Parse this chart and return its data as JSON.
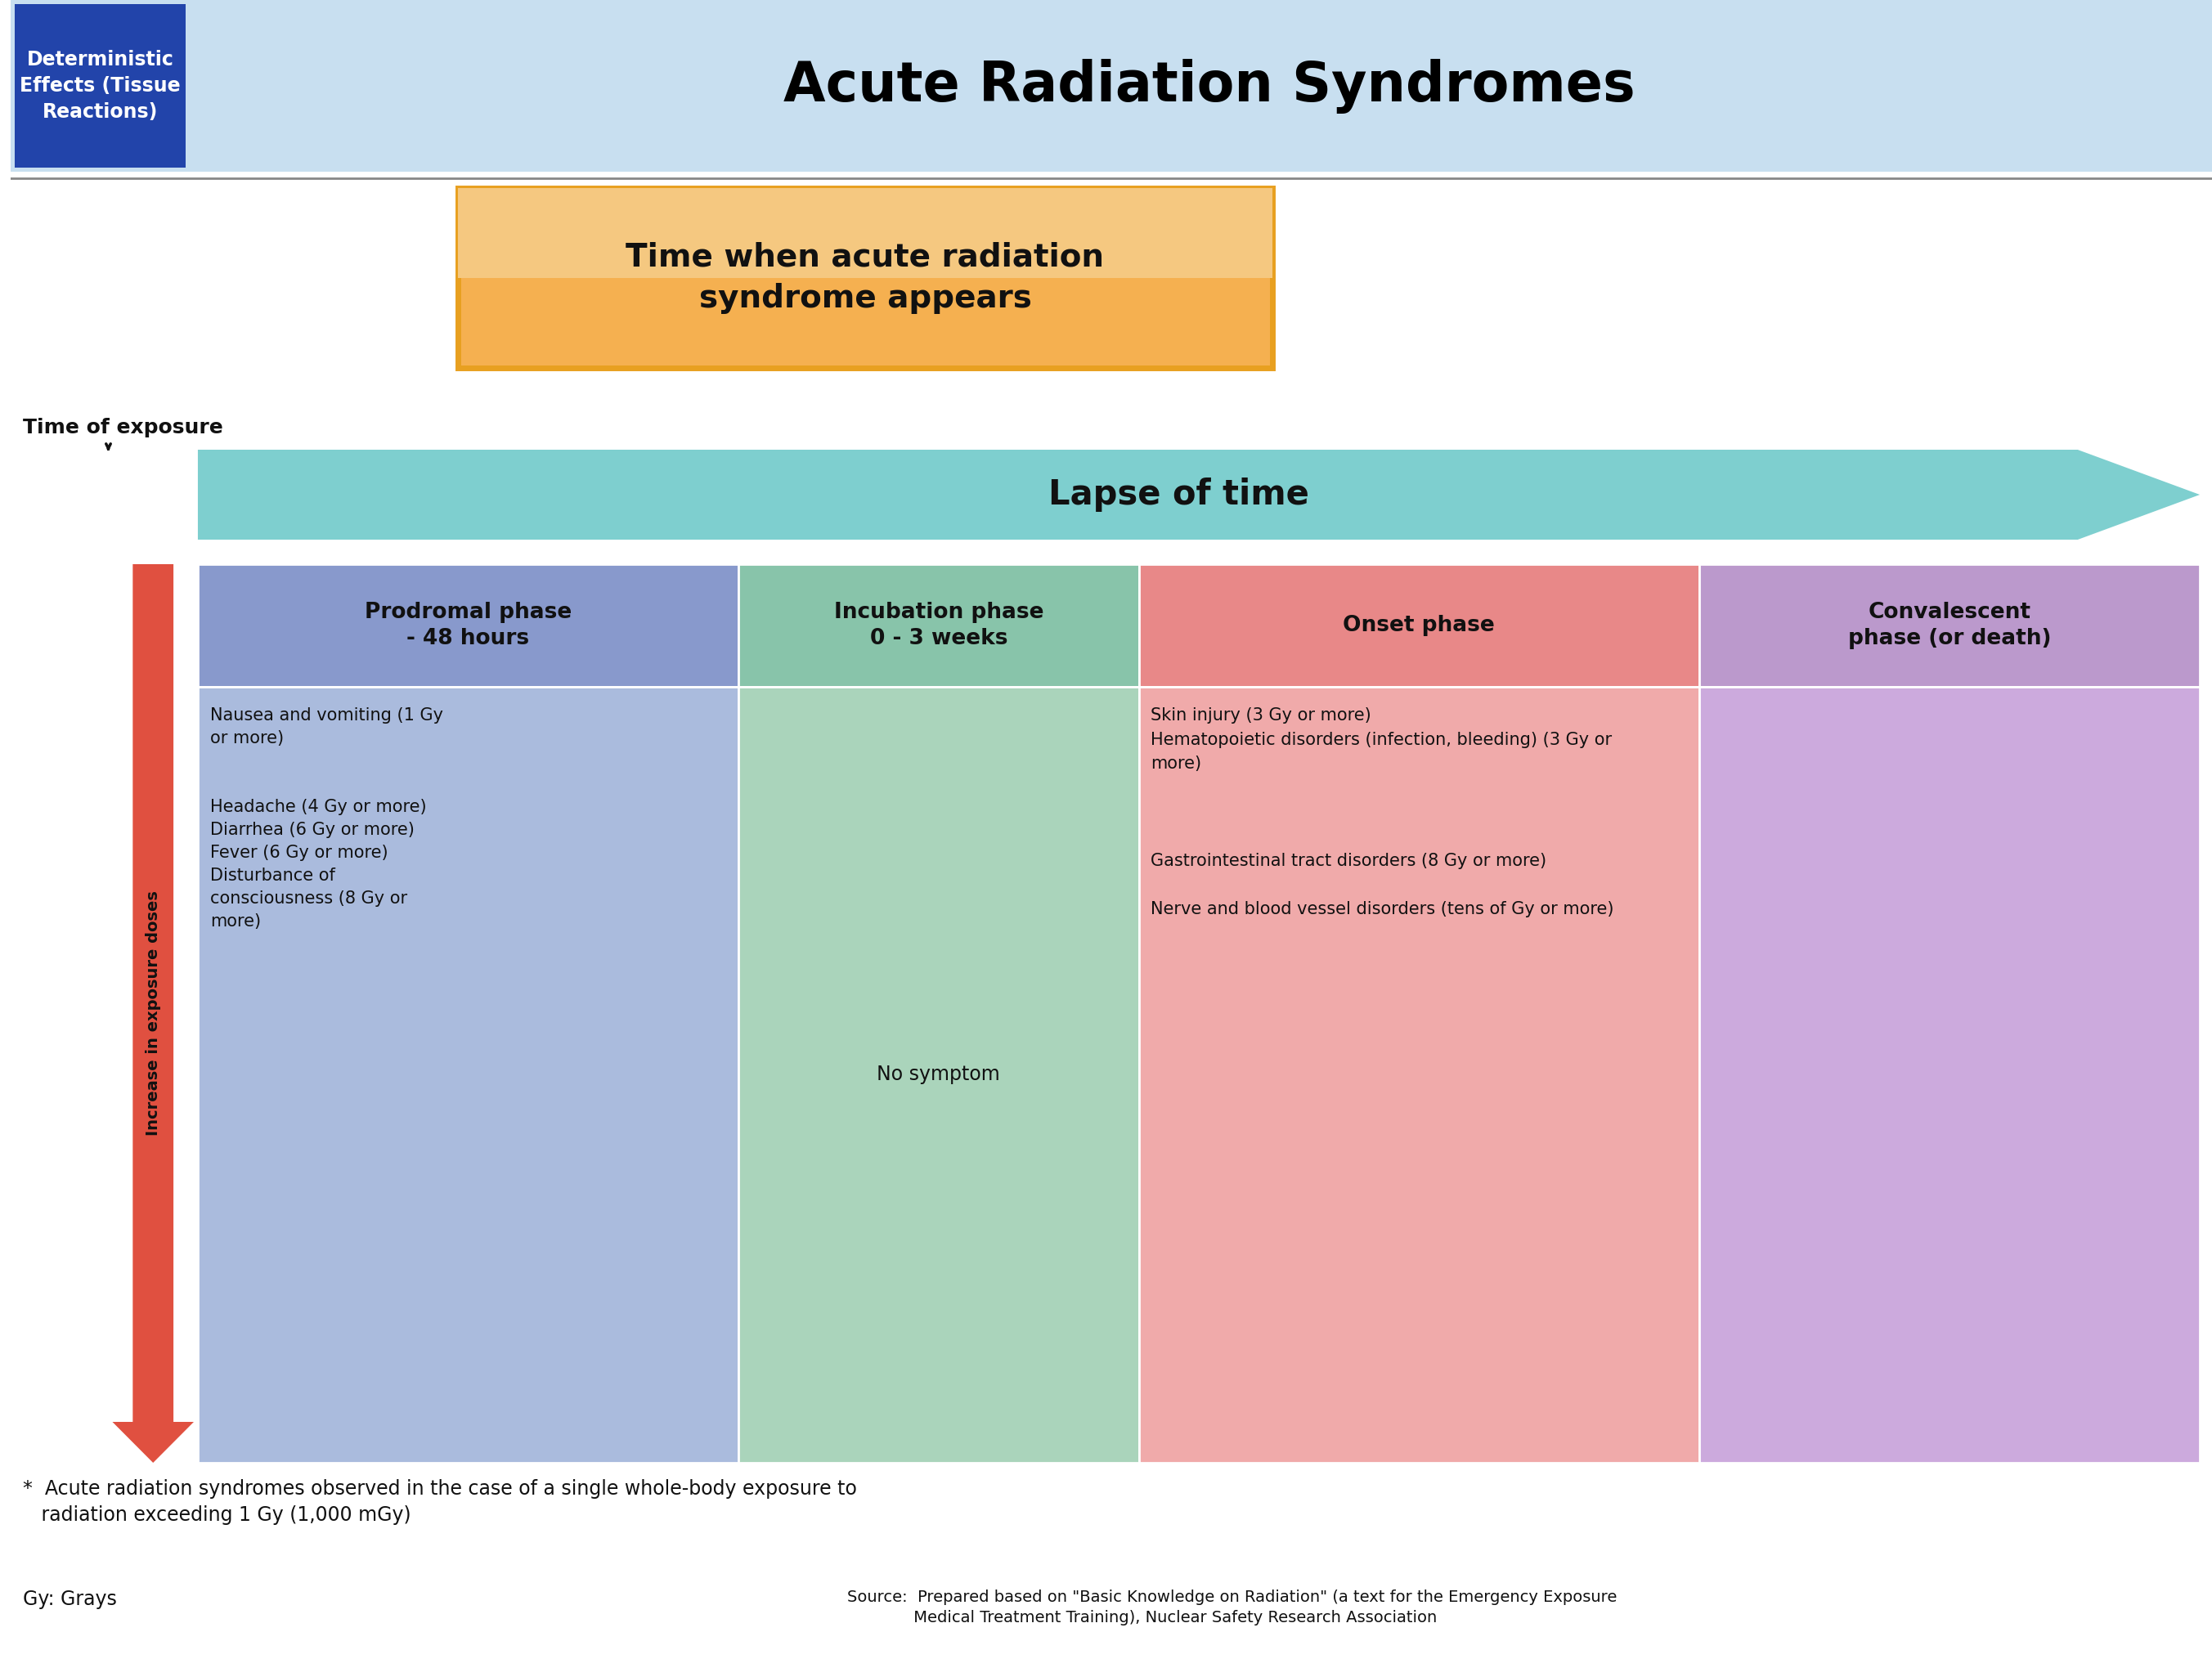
{
  "title": "Acute Radiation Syndromes",
  "subtitle_box": "Time when acute radiation\nsyndrome appears",
  "lapse_text": "Lapse of time",
  "time_exposure_text": "Time of exposure",
  "increase_text": "Increase in exposure doses",
  "bg_color": "#ffffff",
  "header_bg": "#c8dff0",
  "blue_box_color": "#2244aa",
  "blue_box_text_color": "#ffffff",
  "title_color": "#000000",
  "orange_border": "#e8a020",
  "orange_fill_top": "#f5c880",
  "orange_fill_bot": "#f5b050",
  "arrow_color": "#7ecfcf",
  "col_headers": [
    "Prodromal phase\n- 48 hours",
    "Incubation phase\n0 - 3 weeks",
    "Onset phase",
    "Convalescent\nphase (or death)"
  ],
  "col_header_colors": [
    "#8899cc",
    "#88c4aa",
    "#e88888",
    "#bb99cc"
  ],
  "col_body_colors": [
    "#aabbdd",
    "#aad4bb",
    "#f0aaaa",
    "#ccaadd"
  ],
  "prodromal_text": "Nausea and vomiting (1 Gy\nor more)\n\n\nHeadache (4 Gy or more)\nDiarrhea (6 Gy or more)\nFever (6 Gy or more)\nDisturbance of\nconsciousness (8 Gy or\nmore)",
  "incubation_text": "No symptom",
  "onset_text": "Skin injury (3 Gy or more)\nHematopoietic disorders (infection, bleeding) (3 Gy or\nmore)\n\n\n\nGastrointestinal tract disorders (8 Gy or more)\n\nNerve and blood vessel disorders (tens of Gy or more)",
  "convalescent_text": "",
  "footnote1": "*  Acute radiation syndromes observed in the case of a single whole-body exposure to\n   radiation exceeding 1 Gy (1,000 mGy)",
  "footnote2": "Source:  Prepared based on \"Basic Knowledge on Radiation\" (a text for the Emergency Exposure\n             Medical Treatment Training), Nuclear Safety Research Association",
  "gy_text": "Gy: Grays",
  "arrow_down_color": "#cc3322"
}
